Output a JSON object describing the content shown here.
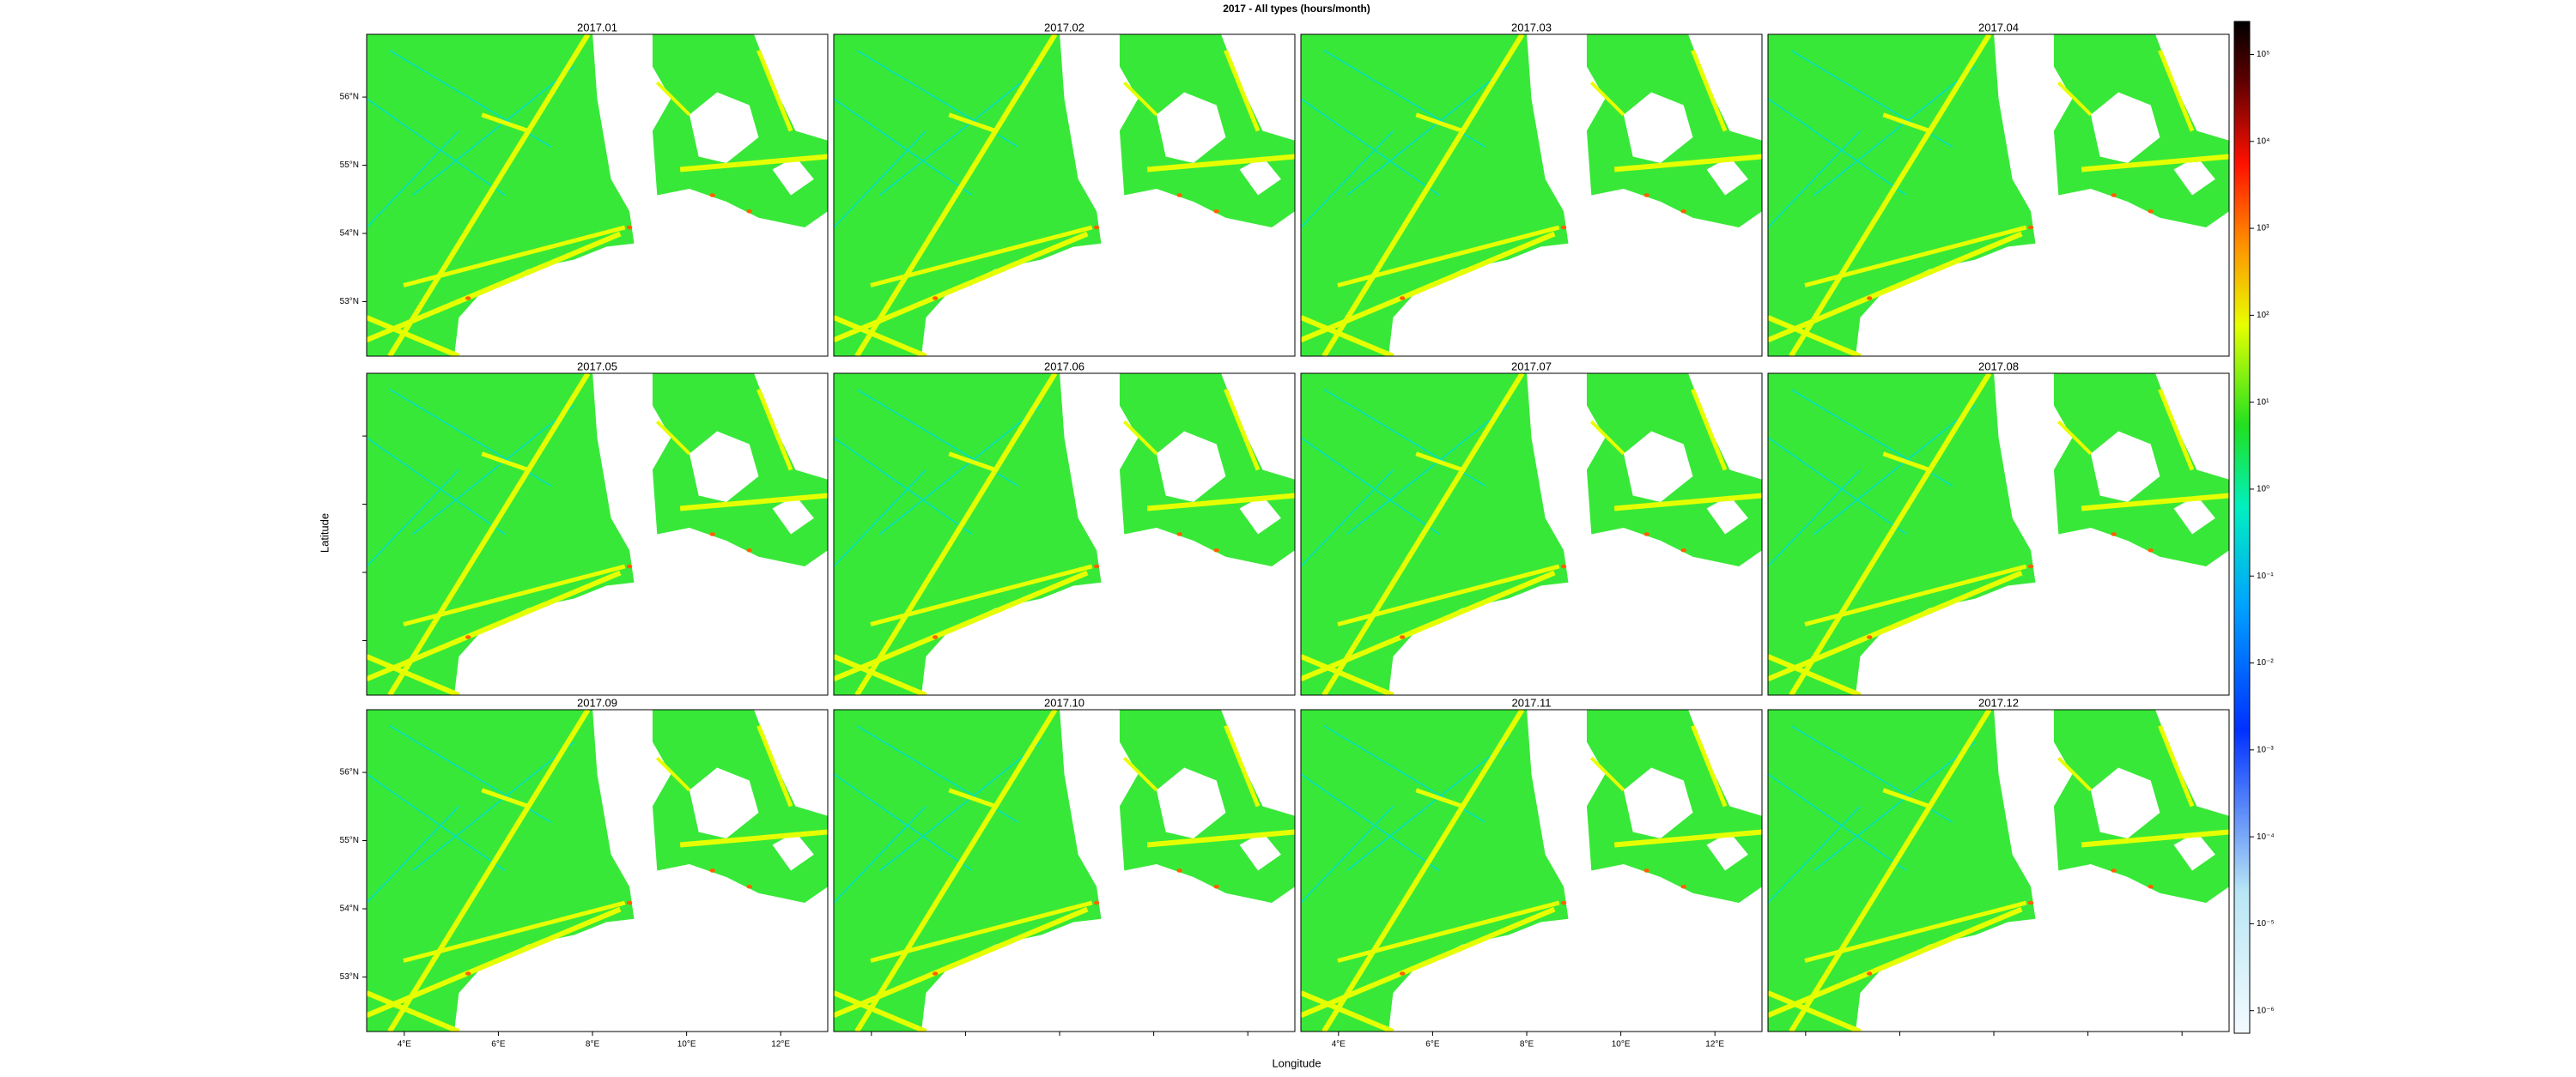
{
  "title": "2017 - All types (hours/month)",
  "panels": [
    "2017.01",
    "2017.02",
    "2017.03",
    "2017.04",
    "2017.05",
    "2017.06",
    "2017.07",
    "2017.08",
    "2017.09",
    "2017.10",
    "2017.11",
    "2017.12"
  ],
  "x_axis": {
    "label": "Longitude",
    "range": [
      3.2,
      13.0
    ],
    "ticks": [
      {
        "value": 4,
        "label": "4°E"
      },
      {
        "value": 6,
        "label": "6°E"
      },
      {
        "value": 8,
        "label": "8°E"
      },
      {
        "value": 10,
        "label": "10°E"
      },
      {
        "value": 12,
        "label": "12°E"
      }
    ]
  },
  "y_axis": {
    "label": "Latitude",
    "range": [
      52.2,
      56.92
    ],
    "ticks": [
      {
        "value": 53,
        "label": "53°N"
      },
      {
        "value": 54,
        "label": "54°N"
      },
      {
        "value": 55,
        "label": "55°N"
      },
      {
        "value": 56,
        "label": "56°N"
      }
    ]
  },
  "colorbar": {
    "scale": "log",
    "range": [
      5.5e-07,
      240000
    ],
    "ticks": [
      {
        "value": 1e-06,
        "label": "10⁻⁶"
      },
      {
        "value": 1e-05,
        "label": "10⁻⁵"
      },
      {
        "value": 0.0001,
        "label": "10⁻⁴"
      },
      {
        "value": 0.001,
        "label": "10⁻³"
      },
      {
        "value": 0.01,
        "label": "10⁻²"
      },
      {
        "value": 0.1,
        "label": "10⁻¹"
      },
      {
        "value": 1,
        "label": "10⁰"
      },
      {
        "value": 10,
        "label": "10¹"
      },
      {
        "value": 100,
        "label": "10²"
      },
      {
        "value": 1000,
        "label": "10³"
      },
      {
        "value": 10000,
        "label": "10⁴"
      },
      {
        "value": 100000,
        "label": "10⁵"
      }
    ]
  }
}
